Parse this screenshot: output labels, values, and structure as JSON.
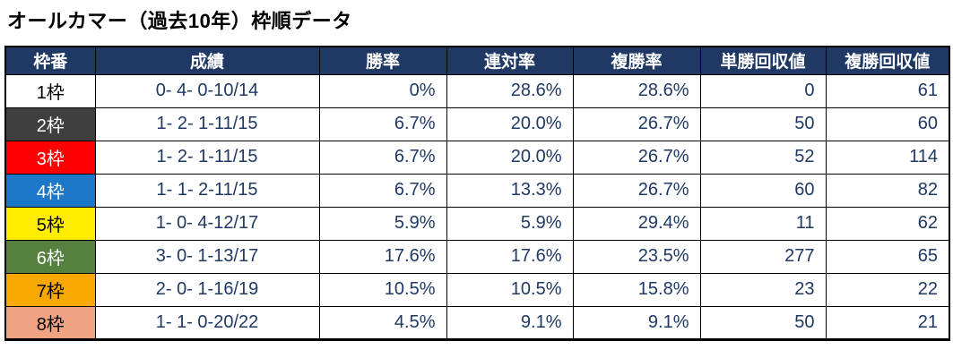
{
  "title": "オールカマー（過去10年）枠順データ",
  "colors": {
    "header_bg": "#1f3864",
    "data_text": "#1f3864",
    "border": "#000000"
  },
  "chart_data": {
    "type": "table",
    "title": "オールカマー（過去10年）枠順データ",
    "columns": [
      "枠番",
      "成績",
      "勝率",
      "連対率",
      "複勝率",
      "単勝回収値",
      "複勝回収値"
    ],
    "rows": [
      {
        "frame": "1枠",
        "frame_color": "#ffffff",
        "frame_text_color": "#000000",
        "record": "0- 4- 0-10/14",
        "win_rate": "0%",
        "quinella_rate": "28.6%",
        "show_rate": "28.6%",
        "win_return": "0",
        "show_return": "61"
      },
      {
        "frame": "2枠",
        "frame_color": "#3f3f3f",
        "frame_text_color": "#ffffff",
        "record": "1- 2- 1-11/15",
        "win_rate": "6.7%",
        "quinella_rate": "20.0%",
        "show_rate": "26.7%",
        "win_return": "50",
        "show_return": "60"
      },
      {
        "frame": "3枠",
        "frame_color": "#ff0000",
        "frame_text_color": "#ffffff",
        "record": "1- 2- 1-11/15",
        "win_rate": "6.7%",
        "quinella_rate": "20.0%",
        "show_rate": "26.7%",
        "win_return": "52",
        "show_return": "114"
      },
      {
        "frame": "4枠",
        "frame_color": "#1b78c8",
        "frame_text_color": "#ffffff",
        "record": "1- 1- 2-11/15",
        "win_rate": "6.7%",
        "quinella_rate": "13.3%",
        "show_rate": "26.7%",
        "win_return": "60",
        "show_return": "82"
      },
      {
        "frame": "5枠",
        "frame_color": "#ffec00",
        "frame_text_color": "#000000",
        "record": "1- 0- 4-12/17",
        "win_rate": "5.9%",
        "quinella_rate": "5.9%",
        "show_rate": "29.4%",
        "win_return": "11",
        "show_return": "62"
      },
      {
        "frame": "6枠",
        "frame_color": "#55803d",
        "frame_text_color": "#ffffff",
        "record": "3- 0- 1-13/17",
        "win_rate": "17.6%",
        "quinella_rate": "17.6%",
        "show_rate": "23.5%",
        "win_return": "277",
        "show_return": "65"
      },
      {
        "frame": "7枠",
        "frame_color": "#f8a800",
        "frame_text_color": "#000000",
        "record": "2- 0- 1-16/19",
        "win_rate": "10.5%",
        "quinella_rate": "10.5%",
        "show_rate": "15.8%",
        "win_return": "23",
        "show_return": "22"
      },
      {
        "frame": "8枠",
        "frame_color": "#efa383",
        "frame_text_color": "#000000",
        "record": "1- 1- 0-20/22",
        "win_rate": "4.5%",
        "quinella_rate": "9.1%",
        "show_rate": "9.1%",
        "win_return": "50",
        "show_return": "21"
      }
    ]
  }
}
